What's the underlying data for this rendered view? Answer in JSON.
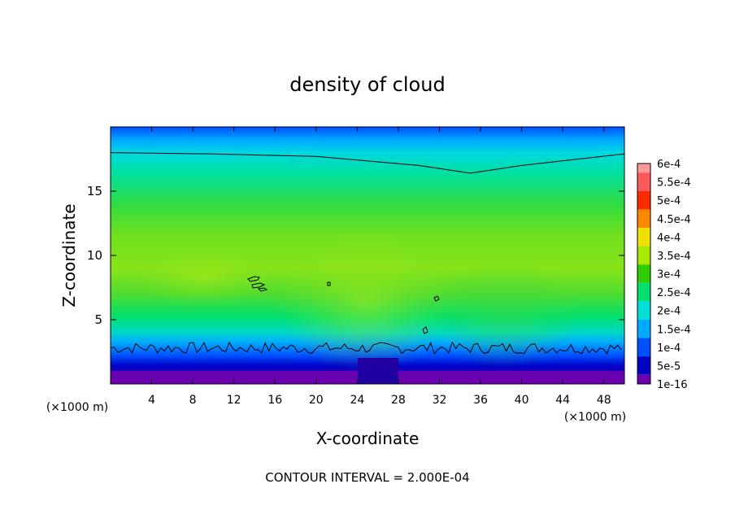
{
  "chart_data": {
    "type": "heatmap",
    "title": "density of cloud",
    "xlabel": "X-coordinate",
    "ylabel": "Z-coordinate",
    "x_unit_label": "(×1000 m)",
    "x_unit_label_right": "(×1000 m)",
    "xlim": [
      0,
      50
    ],
    "ylim": [
      0,
      20
    ],
    "x_ticks": [
      4,
      8,
      12,
      16,
      20,
      24,
      28,
      32,
      36,
      40,
      44,
      48
    ],
    "y_ticks": [
      5,
      10,
      15
    ],
    "contour_interval_text": "CONTOUR INTERVAL = 2.000E-04",
    "colorbar": {
      "labels": [
        "6e-4",
        "5.5e-4",
        "5e-4",
        "4.5e-4",
        "4e-4",
        "3.5e-4",
        "3e-4",
        "2.5e-4",
        "2e-4",
        "1.5e-4",
        "1e-4",
        "5e-5",
        "1e-16"
      ],
      "colors": [
        "#ff9a9a",
        "#ff5a5a",
        "#ff2a00",
        "#ff8a00",
        "#f0e000",
        "#a8e800",
        "#30cc00",
        "#00e070",
        "#00e0d8",
        "#00a8ff",
        "#0050ff",
        "#0000c0",
        "#7000b0"
      ]
    },
    "field_description_samples": {
      "z_profile": [
        {
          "z": 0.5,
          "value": 1e-16
        },
        {
          "z": 1.5,
          "value": 5e-05
        },
        {
          "z": 2.5,
          "value": 0.00015
        },
        {
          "z": 4,
          "value": 0.00027
        },
        {
          "z": 6,
          "value": 0.0003
        },
        {
          "z": 8,
          "value": 0.00035
        },
        {
          "z": 10,
          "value": 0.00034
        },
        {
          "z": 13,
          "value": 0.00031
        },
        {
          "z": 16,
          "value": 0.00026
        },
        {
          "z": 18,
          "value": 0.00021
        },
        {
          "z": 20,
          "value": 0.00012
        }
      ],
      "upper_contour": [
        {
          "x": 0,
          "z": 18.0
        },
        {
          "x": 10,
          "z": 17.9
        },
        {
          "x": 20,
          "z": 17.7
        },
        {
          "x": 30,
          "z": 17.0
        },
        {
          "x": 35,
          "z": 16.4
        },
        {
          "x": 40,
          "z": 17.0
        },
        {
          "x": 50,
          "z": 17.9
        }
      ],
      "lower_contour_z": 2.8
    }
  }
}
